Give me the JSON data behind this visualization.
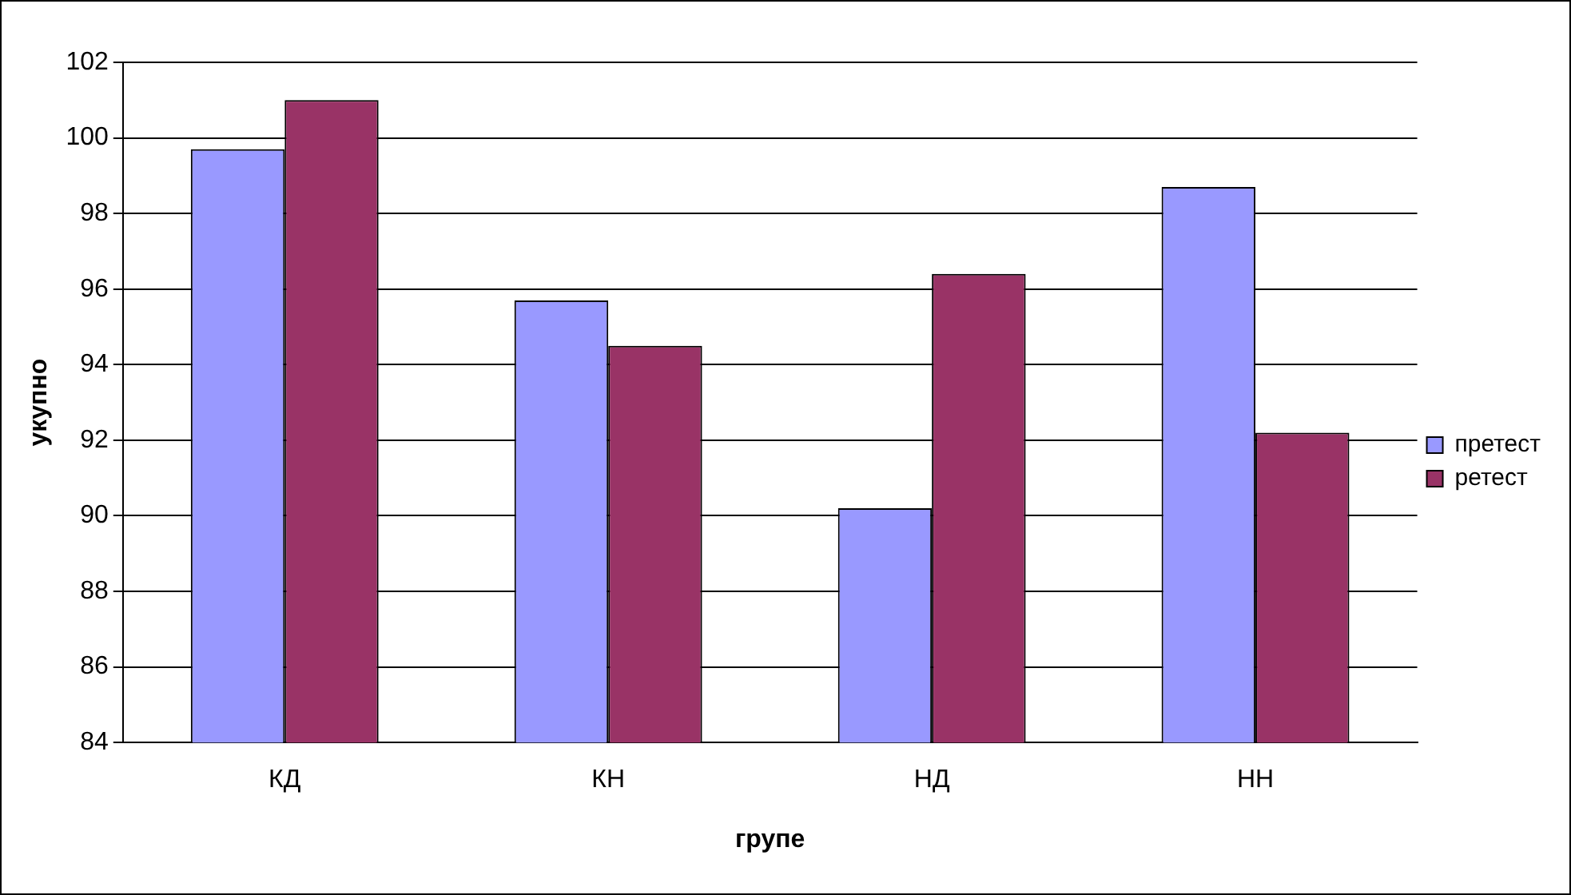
{
  "chart_data": {
    "type": "bar",
    "xlabel": "групе",
    "ylabel": "укупно",
    "categories": [
      "КД",
      "КН",
      "НД",
      "НН"
    ],
    "series": [
      {
        "name": "претест",
        "color": "#9999ff",
        "values": [
          99.7,
          95.7,
          90.2,
          98.7
        ]
      },
      {
        "name": "ретест",
        "color": "#993366",
        "values": [
          101.0,
          94.5,
          96.4,
          92.2
        ]
      }
    ],
    "ylim": [
      84,
      102
    ],
    "yticks": [
      84,
      86,
      88,
      90,
      92,
      94,
      96,
      98,
      100,
      102
    ],
    "grid": "y",
    "legend": "right"
  }
}
